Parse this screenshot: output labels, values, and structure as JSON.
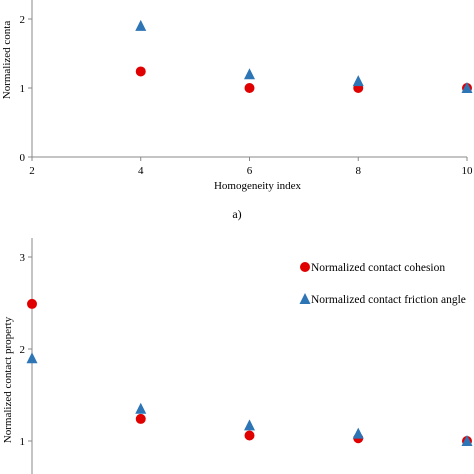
{
  "caption_a": "a)",
  "chart_data": [
    {
      "type": "scatter",
      "title": "",
      "xlabel": "Homogeneity index",
      "ylabel": "Normalized conta",
      "xlim": [
        2,
        10
      ],
      "ylim": [
        0,
        2
      ],
      "xticks": [
        "2",
        "4",
        "6",
        "8",
        "10"
      ],
      "yticks": [
        "0",
        "1",
        "2"
      ],
      "grid": false,
      "legend": "none",
      "series": [
        {
          "marker": "circle",
          "color": "#e00000",
          "x": [
            4,
            6,
            8,
            10
          ],
          "y": [
            1.24,
            1.0,
            1.0,
            1.0
          ]
        },
        {
          "marker": "triangle",
          "color": "#2e75b6",
          "x": [
            4,
            6,
            8,
            10
          ],
          "y": [
            1.9,
            1.2,
            1.1,
            1.0
          ]
        }
      ]
    },
    {
      "type": "scatter",
      "title": "",
      "xlabel": "",
      "ylabel": "Normalized contact property",
      "xlim": [
        2,
        10
      ],
      "ylim": [
        1,
        3
      ],
      "xticks": [],
      "yticks": [
        "1",
        "2",
        "3"
      ],
      "grid": false,
      "legend": "top-right",
      "series": [
        {
          "name": "Normalized contact cohesion",
          "marker": "circle",
          "color": "#e00000",
          "x": [
            2,
            4,
            6,
            8,
            10
          ],
          "y": [
            2.49,
            1.24,
            1.06,
            1.03,
            1.0
          ]
        },
        {
          "name": "Normalized contact friction angle",
          "marker": "triangle",
          "color": "#2e75b6",
          "x": [
            2,
            4,
            6,
            8,
            10
          ],
          "y": [
            1.9,
            1.35,
            1.17,
            1.08,
            1.0
          ]
        }
      ]
    }
  ]
}
